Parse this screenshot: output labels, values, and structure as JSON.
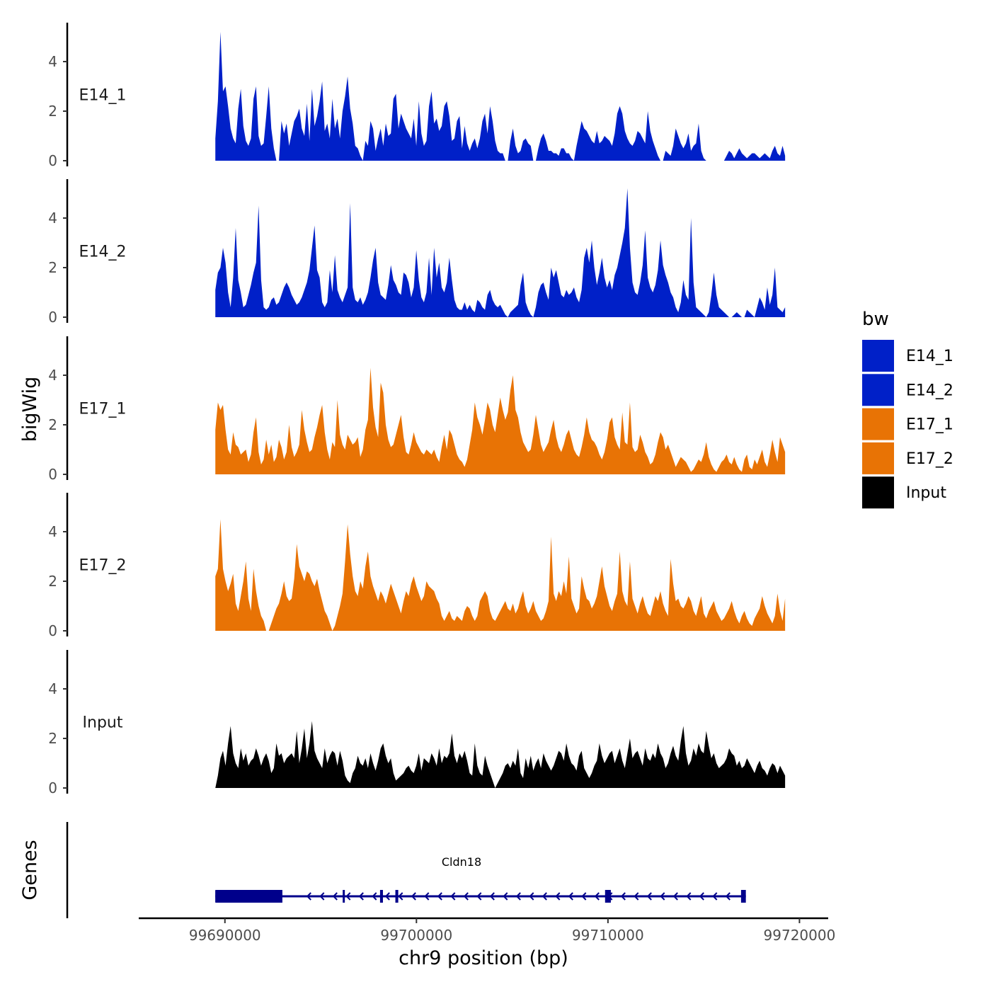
{
  "chart_data": {
    "type": "area",
    "chromosome": "chr9",
    "ylabel": "bigWig",
    "xlabel": "chr9 position (bp)",
    "ylim": [
      0,
      5.5
    ],
    "yticks": [
      0,
      2,
      4
    ],
    "xlim": [
      99685500,
      99721500
    ],
    "xticks": [
      99690000,
      99700000,
      99710000,
      99720000
    ],
    "xtick_labels": [
      "99690000",
      "99700000",
      "99710000",
      "99720000"
    ],
    "x_start": 99689500,
    "x_end": 99719250,
    "colors": {
      "E14_1": "#0020c8",
      "E14_2": "#0020c8",
      "E17_1": "#e87305",
      "E17_2": "#e87305",
      "Input": "#000000",
      "gene": "#00008b"
    },
    "series": [
      {
        "name": "E14_1",
        "label": "E14_1",
        "values": [
          0.9,
          2.4,
          5.2,
          2.8,
          3.0,
          2.2,
          1.3,
          0.9,
          0.7,
          2.1,
          2.9,
          1.4,
          0.8,
          0.6,
          0.9,
          2.5,
          3.0,
          1.0,
          0.6,
          0.7,
          1.8,
          3.0,
          1.3,
          0.5,
          0.0,
          0.0,
          1.6,
          1.1,
          1.5,
          0.6,
          1.1,
          1.6,
          1.8,
          2.1,
          1.3,
          1.0,
          2.3,
          0.8,
          2.9,
          1.4,
          1.8,
          2.4,
          3.2,
          1.2,
          1.5,
          0.9,
          2.5,
          1.3,
          1.7,
          0.9,
          2.0,
          2.6,
          3.4,
          2.1,
          1.5,
          0.6,
          0.5,
          0.2,
          0.0,
          0.8,
          0.6,
          1.6,
          1.3,
          0.4,
          0.9,
          1.3,
          0.6,
          1.5,
          1.0,
          1.1,
          2.5,
          2.7,
          1.3,
          1.9,
          1.6,
          1.3,
          1.1,
          0.9,
          1.7,
          0.6,
          2.4,
          1.1,
          0.6,
          0.8,
          2.2,
          2.8,
          1.5,
          1.7,
          1.2,
          1.4,
          2.2,
          2.4,
          1.8,
          0.8,
          0.9,
          1.6,
          1.8,
          0.5,
          1.4,
          0.7,
          0.4,
          0.7,
          0.9,
          0.5,
          0.9,
          1.6,
          1.9,
          1.1,
          2.2,
          1.6,
          0.8,
          0.4,
          0.3,
          0.3,
          0.0,
          0.0,
          0.8,
          1.3,
          0.6,
          0.3,
          0.4,
          0.8,
          0.9,
          0.7,
          0.6,
          0.0,
          0.0,
          0.5,
          0.9,
          1.1,
          0.8,
          0.4,
          0.4,
          0.3,
          0.3,
          0.2,
          0.5,
          0.5,
          0.3,
          0.3,
          0.1,
          0.0,
          0.6,
          1.1,
          1.6,
          1.3,
          1.2,
          1.0,
          0.8,
          0.7,
          1.2,
          0.7,
          0.8,
          1.0,
          0.9,
          0.8,
          0.6,
          1.1,
          1.9,
          2.2,
          1.9,
          1.2,
          0.9,
          0.7,
          0.6,
          0.8,
          1.2,
          1.1,
          0.9,
          0.7,
          2.0,
          1.2,
          0.8,
          0.5,
          0.2,
          0.0,
          0.0,
          0.4,
          0.3,
          0.2,
          0.6,
          1.3,
          1.0,
          0.7,
          0.5,
          0.7,
          1.1,
          0.4,
          0.6,
          0.7,
          1.5,
          0.4,
          0.1,
          0.0,
          0.0,
          0.0,
          0.0,
          0.0,
          0.0,
          0.0,
          0.0,
          0.2,
          0.4,
          0.3,
          0.1,
          0.3,
          0.5,
          0.3,
          0.2,
          0.1,
          0.2,
          0.3,
          0.3,
          0.2,
          0.1,
          0.2,
          0.3,
          0.2,
          0.1,
          0.4,
          0.6,
          0.3,
          0.2,
          0.6,
          0.2
        ]
      },
      {
        "name": "E14_2",
        "label": "E14_2",
        "values": [
          1.1,
          1.8,
          2.0,
          2.8,
          2.2,
          1.0,
          0.4,
          1.6,
          3.6,
          1.5,
          1.0,
          0.4,
          0.5,
          0.9,
          1.3,
          1.8,
          2.2,
          4.5,
          1.5,
          0.4,
          0.3,
          0.4,
          0.7,
          0.8,
          0.5,
          0.6,
          0.9,
          1.2,
          1.4,
          1.2,
          0.9,
          0.7,
          0.5,
          0.6,
          0.8,
          1.1,
          1.4,
          1.9,
          2.8,
          3.7,
          1.9,
          1.6,
          0.6,
          0.4,
          0.6,
          1.9,
          1.0,
          2.5,
          1.1,
          0.8,
          0.6,
          0.9,
          1.2,
          4.6,
          1.2,
          0.7,
          0.6,
          0.8,
          0.5,
          0.7,
          1.0,
          1.6,
          2.3,
          2.8,
          1.4,
          0.9,
          0.8,
          0.7,
          1.3,
          2.1,
          1.5,
          1.3,
          1.0,
          0.9,
          1.8,
          1.7,
          1.4,
          0.8,
          1.2,
          2.7,
          1.5,
          0.8,
          0.6,
          1.0,
          2.4,
          0.9,
          2.8,
          1.6,
          2.2,
          1.2,
          1.0,
          1.4,
          2.4,
          1.5,
          0.7,
          0.4,
          0.3,
          0.3,
          0.6,
          0.3,
          0.5,
          0.3,
          0.2,
          0.7,
          0.6,
          0.4,
          0.3,
          0.9,
          1.1,
          0.7,
          0.5,
          0.4,
          0.5,
          0.3,
          0.1,
          0.0,
          0.2,
          0.3,
          0.4,
          0.5,
          1.3,
          1.8,
          0.6,
          0.3,
          0.1,
          0.0,
          0.4,
          1.0,
          1.3,
          1.4,
          1.0,
          0.7,
          2.0,
          1.6,
          1.9,
          1.4,
          0.9,
          0.8,
          1.1,
          0.9,
          1.0,
          1.2,
          0.8,
          0.6,
          1.1,
          2.4,
          2.8,
          2.2,
          3.1,
          2.0,
          1.3,
          1.8,
          2.4,
          1.6,
          1.2,
          1.5,
          1.1,
          1.7,
          2.0,
          2.5,
          3.0,
          3.6,
          5.2,
          2.8,
          1.4,
          1.0,
          0.9,
          1.4,
          2.1,
          3.5,
          1.6,
          1.2,
          1.0,
          1.3,
          1.9,
          3.1,
          2.1,
          1.7,
          1.4,
          1.0,
          0.8,
          0.4,
          0.2,
          0.6,
          1.5,
          0.9,
          0.7,
          4.0,
          1.4,
          0.4,
          0.3,
          0.2,
          0.1,
          0.0,
          0.2,
          0.9,
          1.8,
          0.9,
          0.4,
          0.3,
          0.2,
          0.1,
          0.0,
          0.0,
          0.1,
          0.2,
          0.1,
          0.0,
          0.0,
          0.3,
          0.2,
          0.1,
          0.0,
          0.4,
          0.8,
          0.6,
          0.3,
          1.2,
          0.5,
          0.9,
          2.0,
          0.4,
          0.3,
          0.2,
          0.4
        ]
      },
      {
        "name": "E17_1",
        "label": "E17_1",
        "values": [
          1.8,
          2.9,
          2.6,
          2.8,
          1.8,
          1.0,
          0.8,
          1.7,
          1.2,
          1.1,
          0.8,
          0.9,
          1.0,
          0.5,
          0.8,
          1.7,
          2.3,
          0.9,
          0.4,
          0.6,
          1.4,
          0.8,
          1.2,
          0.5,
          0.7,
          1.4,
          1.1,
          0.6,
          0.9,
          2.0,
          1.1,
          0.7,
          0.9,
          1.2,
          2.6,
          1.8,
          1.3,
          0.9,
          1.0,
          1.5,
          1.9,
          2.4,
          2.8,
          1.7,
          1.0,
          0.6,
          1.3,
          1.1,
          3.0,
          1.6,
          1.2,
          1.0,
          1.6,
          1.4,
          1.2,
          1.3,
          1.5,
          0.7,
          1.0,
          1.8,
          2.2,
          4.3,
          2.7,
          1.9,
          1.5,
          3.7,
          3.3,
          2.0,
          1.4,
          1.1,
          1.2,
          1.6,
          2.0,
          2.4,
          1.5,
          0.9,
          0.8,
          1.2,
          1.7,
          1.3,
          1.1,
          0.9,
          0.8,
          1.0,
          0.9,
          0.8,
          1.0,
          0.7,
          0.5,
          1.1,
          1.6,
          1.0,
          1.8,
          1.6,
          1.2,
          0.8,
          0.6,
          0.5,
          0.3,
          0.6,
          1.2,
          1.8,
          2.9,
          2.3,
          2.0,
          1.6,
          2.2,
          2.9,
          2.6,
          2.0,
          1.7,
          2.4,
          3.1,
          2.6,
          2.2,
          2.5,
          3.4,
          4.0,
          2.6,
          2.3,
          1.7,
          1.3,
          1.1,
          0.9,
          1.0,
          1.6,
          2.4,
          1.8,
          1.2,
          0.9,
          1.1,
          1.3,
          1.8,
          2.2,
          1.5,
          1.1,
          0.9,
          1.2,
          1.6,
          1.8,
          1.4,
          1.0,
          0.8,
          0.7,
          1.1,
          1.6,
          2.3,
          1.7,
          1.4,
          1.3,
          1.1,
          0.8,
          0.6,
          0.9,
          1.4,
          2.1,
          2.3,
          1.5,
          1.2,
          1.0,
          2.5,
          1.3,
          1.2,
          2.9,
          1.1,
          0.9,
          1.0,
          1.6,
          1.3,
          0.9,
          0.7,
          0.4,
          0.5,
          0.8,
          1.3,
          1.7,
          1.5,
          1.0,
          1.2,
          0.9,
          0.6,
          0.3,
          0.5,
          0.7,
          0.6,
          0.5,
          0.3,
          0.1,
          0.2,
          0.4,
          0.6,
          0.5,
          0.8,
          1.3,
          0.7,
          0.4,
          0.2,
          0.1,
          0.3,
          0.5,
          0.6,
          0.8,
          0.5,
          0.4,
          0.7,
          0.4,
          0.2,
          0.1,
          0.6,
          0.8,
          0.3,
          0.2,
          0.6,
          0.4,
          0.7,
          1.0,
          0.5,
          0.3,
          0.8,
          1.4,
          0.9,
          0.5,
          1.5,
          1.2,
          0.9
        ]
      },
      {
        "name": "E17_2",
        "label": "E17_2",
        "values": [
          2.2,
          2.5,
          4.5,
          2.5,
          2.0,
          1.6,
          1.9,
          2.3,
          1.1,
          0.8,
          1.4,
          2.0,
          2.8,
          1.3,
          0.8,
          2.5,
          1.6,
          1.0,
          0.6,
          0.4,
          0.0,
          0.0,
          0.3,
          0.6,
          0.9,
          1.1,
          1.5,
          2.0,
          1.4,
          1.2,
          1.3,
          2.1,
          3.5,
          2.6,
          2.3,
          2.0,
          2.4,
          2.3,
          2.0,
          1.8,
          2.1,
          1.6,
          1.2,
          0.8,
          0.6,
          0.3,
          0.0,
          0.2,
          0.6,
          1.0,
          1.5,
          2.8,
          4.3,
          3.1,
          2.2,
          1.6,
          1.4,
          2.0,
          1.7,
          2.6,
          3.2,
          2.2,
          1.8,
          1.5,
          1.2,
          1.6,
          1.4,
          1.1,
          1.5,
          1.9,
          1.6,
          1.3,
          1.0,
          0.7,
          1.2,
          1.6,
          1.4,
          1.9,
          2.2,
          1.8,
          1.5,
          1.2,
          1.4,
          2.0,
          1.8,
          1.7,
          1.6,
          1.3,
          1.1,
          0.6,
          0.4,
          0.6,
          0.8,
          0.5,
          0.4,
          0.6,
          0.5,
          0.4,
          0.8,
          1.0,
          0.9,
          0.6,
          0.4,
          0.6,
          1.2,
          1.4,
          1.6,
          1.4,
          0.8,
          0.5,
          0.4,
          0.6,
          0.8,
          1.0,
          1.2,
          0.9,
          0.8,
          1.1,
          0.7,
          0.9,
          1.3,
          1.6,
          1.0,
          0.7,
          0.9,
          1.2,
          0.8,
          0.6,
          0.4,
          0.5,
          0.8,
          1.2,
          3.8,
          1.5,
          1.2,
          1.6,
          1.4,
          2.0,
          1.5,
          3.0,
          1.3,
          1.0,
          0.7,
          0.9,
          2.2,
          1.7,
          1.3,
          1.2,
          0.9,
          1.1,
          1.4,
          2.0,
          2.6,
          1.8,
          1.4,
          1.0,
          0.8,
          1.2,
          1.5,
          3.2,
          1.6,
          1.2,
          1.0,
          2.8,
          1.3,
          1.0,
          0.7,
          1.1,
          1.4,
          1.0,
          0.7,
          0.6,
          1.0,
          1.4,
          1.2,
          1.6,
          1.1,
          0.8,
          0.6,
          2.9,
          1.9,
          1.2,
          1.3,
          1.0,
          0.9,
          1.1,
          1.4,
          1.2,
          0.8,
          0.6,
          1.0,
          1.4,
          0.7,
          0.5,
          0.8,
          1.0,
          1.2,
          0.8,
          0.6,
          0.4,
          0.5,
          0.7,
          0.9,
          1.2,
          0.8,
          0.5,
          0.3,
          0.6,
          0.8,
          0.5,
          0.3,
          0.2,
          0.5,
          0.7,
          0.9,
          1.4,
          1.0,
          0.7,
          0.5,
          0.3,
          0.6,
          1.5,
          0.8,
          0.4,
          1.3
        ]
      },
      {
        "name": "Input",
        "label": "Input",
        "values": [
          0.0,
          0.5,
          1.2,
          1.5,
          0.9,
          1.8,
          2.5,
          1.4,
          1.0,
          0.8,
          1.6,
          1.1,
          1.4,
          0.9,
          1.1,
          1.2,
          1.6,
          1.3,
          0.9,
          1.2,
          1.4,
          1.1,
          0.6,
          0.8,
          1.8,
          1.3,
          1.4,
          1.0,
          1.2,
          1.3,
          1.4,
          1.2,
          2.3,
          1.0,
          1.6,
          2.4,
          1.2,
          1.8,
          2.7,
          1.5,
          1.2,
          1.0,
          0.8,
          1.6,
          1.0,
          1.3,
          1.5,
          1.4,
          0.9,
          1.5,
          1.1,
          0.5,
          0.3,
          0.2,
          0.6,
          0.8,
          1.3,
          1.0,
          0.9,
          1.2,
          0.8,
          1.4,
          1.0,
          0.7,
          1.1,
          1.6,
          1.8,
          1.3,
          1.0,
          1.2,
          0.6,
          0.3,
          0.4,
          0.5,
          0.6,
          0.8,
          0.9,
          0.7,
          0.6,
          0.9,
          1.4,
          0.7,
          1.2,
          1.1,
          1.0,
          1.4,
          1.2,
          0.9,
          1.6,
          1.0,
          1.3,
          1.2,
          1.4,
          2.2,
          1.3,
          1.0,
          1.4,
          1.2,
          1.5,
          1.1,
          0.6,
          0.5,
          1.8,
          0.9,
          0.6,
          0.5,
          1.3,
          0.9,
          0.6,
          0.3,
          0.0,
          0.2,
          0.4,
          0.6,
          0.9,
          1.0,
          0.8,
          1.1,
          0.9,
          1.6,
          0.6,
          0.4,
          1.2,
          0.8,
          1.3,
          0.7,
          1.0,
          1.2,
          0.8,
          1.4,
          1.1,
          0.9,
          0.7,
          0.9,
          1.2,
          1.5,
          1.4,
          1.1,
          1.8,
          1.3,
          1.0,
          0.9,
          0.7,
          1.3,
          1.5,
          0.8,
          0.6,
          0.4,
          0.6,
          0.9,
          1.1,
          1.8,
          1.3,
          1.0,
          1.2,
          1.4,
          1.5,
          1.0,
          1.3,
          1.6,
          1.1,
          0.8,
          1.4,
          2.0,
          1.2,
          1.4,
          1.5,
          1.2,
          0.9,
          1.6,
          1.2,
          1.1,
          1.4,
          1.2,
          1.8,
          1.4,
          1.2,
          0.8,
          1.0,
          1.4,
          1.7,
          1.3,
          1.1,
          1.9,
          2.5,
          1.4,
          0.9,
          1.1,
          1.6,
          1.3,
          1.8,
          1.5,
          1.4,
          2.3,
          1.7,
          1.2,
          1.4,
          1.0,
          0.8,
          0.9,
          1.0,
          1.2,
          1.6,
          1.4,
          1.3,
          0.9,
          1.1,
          0.8,
          0.9,
          1.2,
          1.0,
          0.8,
          0.6,
          0.9,
          1.1,
          0.8,
          0.7,
          0.5,
          0.8,
          1.0,
          0.9,
          0.6,
          0.9,
          0.7,
          0.5
        ]
      }
    ],
    "legend": {
      "title": "bw",
      "position": "right",
      "entries": [
        "E14_1",
        "E14_2",
        "E17_1",
        "E17_2",
        "Input"
      ]
    },
    "genes_track": {
      "title": "Genes",
      "gene_name": "Cldn18",
      "strand": "-",
      "start": 99689500,
      "end": 99717200,
      "exons": [
        [
          99689500,
          99693000
        ],
        [
          99696150,
          99696250
        ],
        [
          99698100,
          99698250
        ],
        [
          99698900,
          99699050
        ],
        [
          99709850,
          99710150
        ],
        [
          99716950,
          99717200
        ]
      ],
      "thick_segments": [
        [
          99689500,
          99692000
        ]
      ]
    }
  }
}
